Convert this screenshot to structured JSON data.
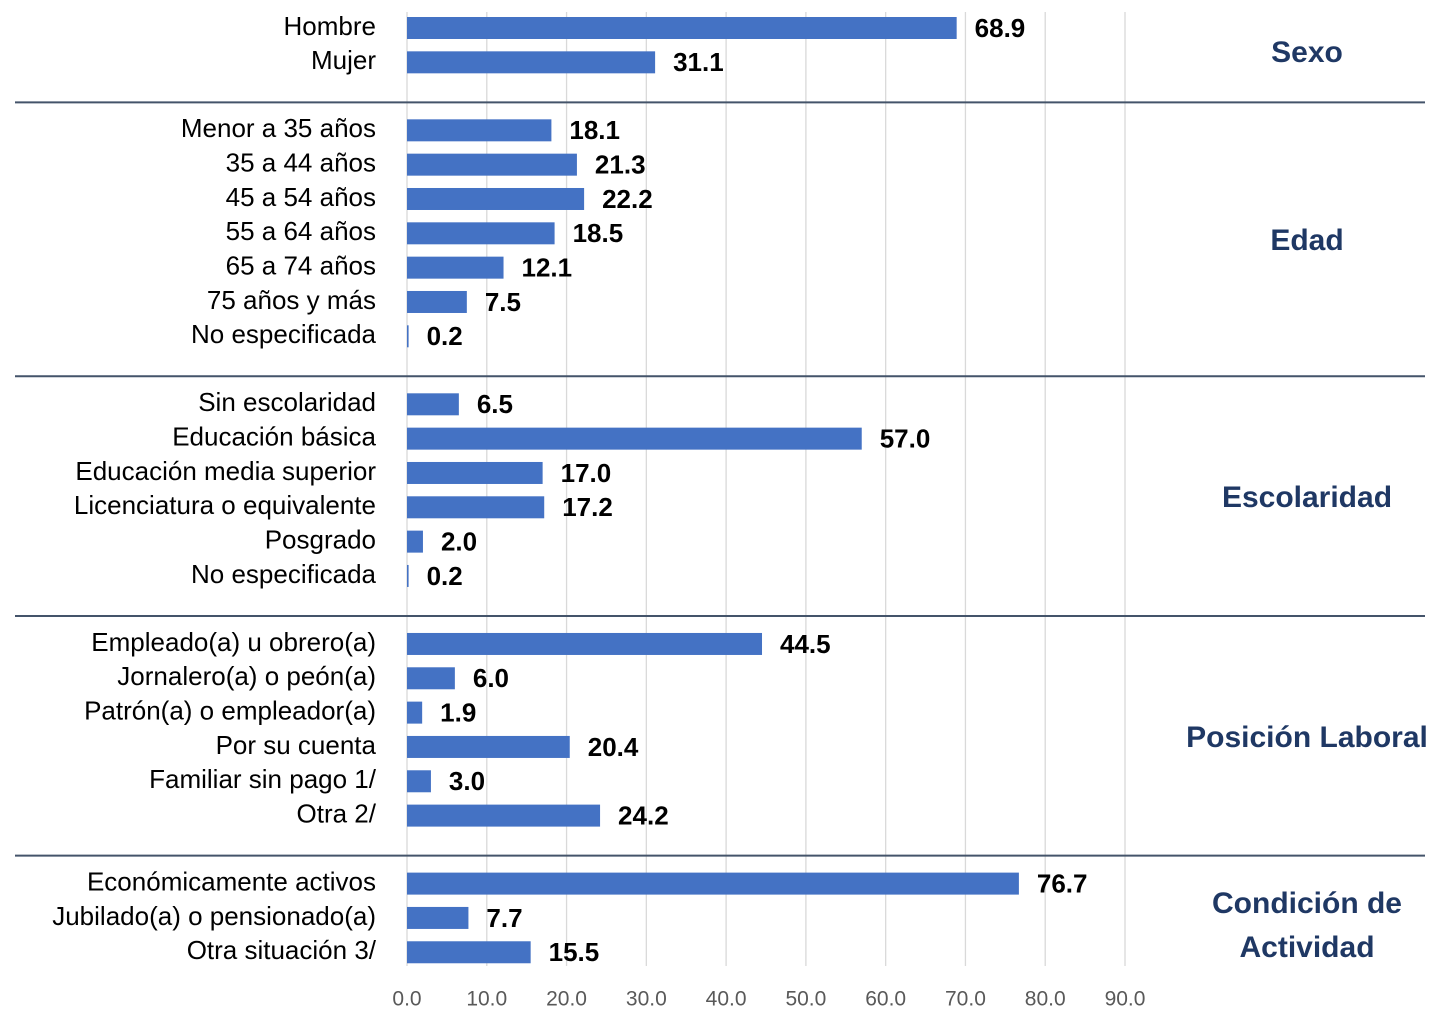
{
  "chart_data": {
    "type": "bar",
    "color": "#4472c4",
    "grid": true,
    "xlim": [
      0,
      90
    ],
    "xticks": [
      {
        "value": 0,
        "label": "0.0"
      },
      {
        "value": 10,
        "label": "10.0"
      },
      {
        "value": 20,
        "label": "20.0"
      },
      {
        "value": 30,
        "label": "30.0"
      },
      {
        "value": 40,
        "label": "40.0"
      },
      {
        "value": 50,
        "label": "50.0"
      },
      {
        "value": 60,
        "label": "60.0"
      },
      {
        "value": 70,
        "label": "70.0"
      },
      {
        "value": 80,
        "label": "80.0"
      },
      {
        "value": 90,
        "label": "90.0"
      }
    ],
    "groups": [
      {
        "name": "Sexo",
        "categories": [
          "Hombre",
          "Mujer"
        ],
        "values": [
          68.9,
          31.1
        ],
        "value_labels": [
          "68.9",
          "31.1"
        ]
      },
      {
        "name": "Edad",
        "categories": [
          "Menor a 35 años",
          "35 a 44 años",
          "45 a 54 años",
          "55 a 64 años",
          "65 a 74 años",
          "75 años y más",
          "No especificada"
        ],
        "values": [
          18.1,
          21.3,
          22.2,
          18.5,
          12.1,
          7.5,
          0.2
        ],
        "value_labels": [
          "18.1",
          "21.3",
          "22.2",
          "18.5",
          "12.1",
          "7.5",
          "0.2"
        ]
      },
      {
        "name": "Escolaridad",
        "categories": [
          "Sin escolaridad",
          "Educación básica",
          "Educación media superior",
          "Licenciatura o equivalente",
          "Posgrado",
          "No especificada"
        ],
        "values": [
          6.5,
          57.0,
          17.0,
          17.2,
          2.0,
          0.2
        ],
        "value_labels": [
          "6.5",
          "57.0",
          "17.0",
          "17.2",
          "2.0",
          "0.2"
        ]
      },
      {
        "name": "Posición Laboral",
        "categories": [
          "Empleado(a) u obrero(a)",
          "Jornalero(a) o peón(a)",
          "Patrón(a) o empleador(a)",
          "Por su cuenta",
          "Familiar sin pago 1/",
          "Otra 2/"
        ],
        "values": [
          44.5,
          6.0,
          1.9,
          20.4,
          3.0,
          24.2
        ],
        "value_labels": [
          "44.5",
          "6.0",
          "1.9",
          "20.4",
          "3.0",
          "24.2"
        ]
      },
      {
        "name": "Condición de Actividad",
        "categories": [
          "Económicamente activos",
          "Jubilado(a) o pensionado(a)",
          "Otra situación 3/"
        ],
        "values": [
          76.7,
          7.7,
          15.5
        ],
        "value_labels": [
          "76.7",
          "7.7",
          "15.5"
        ]
      }
    ]
  }
}
